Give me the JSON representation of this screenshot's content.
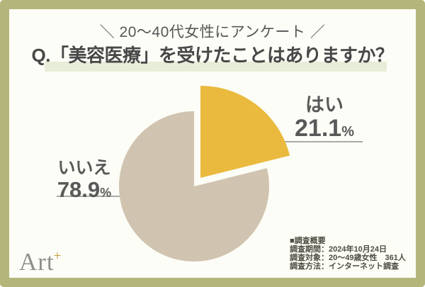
{
  "frame": {
    "border_color": "#b4b57a",
    "background": "#fcfdf6"
  },
  "header": {
    "tagline": "＼ 20〜40代女性にアンケート ／"
  },
  "title": {
    "text": "Q.「美容医療」を受けたことはありますか？",
    "highlight_color": "#e8edda"
  },
  "chart_data": {
    "type": "pie",
    "title": "Q.「美容医療」を受けたことはありますか？",
    "categories": [
      "はい",
      "いいえ"
    ],
    "values": [
      21.1,
      78.9
    ],
    "unit": "%",
    "start_angle_deg": 0,
    "direction": "clockwise",
    "legend_position": "callout-labels",
    "slices": [
      {
        "label": "はい",
        "value": 21.1,
        "value_text": "21.1",
        "color": "#e9ba3e",
        "exploded": true
      },
      {
        "label": "いいえ",
        "value": 78.9,
        "value_text": "78.9",
        "color": "#d0c4b0",
        "exploded": false
      }
    ]
  },
  "survey": {
    "lines": [
      "■調査概要",
      "調査期間：2024年10月24日",
      "調査対象：20〜49歳女性　361人",
      "調査方法：インターネット調査"
    ]
  },
  "logo": {
    "text": "Art",
    "plus": "+"
  }
}
